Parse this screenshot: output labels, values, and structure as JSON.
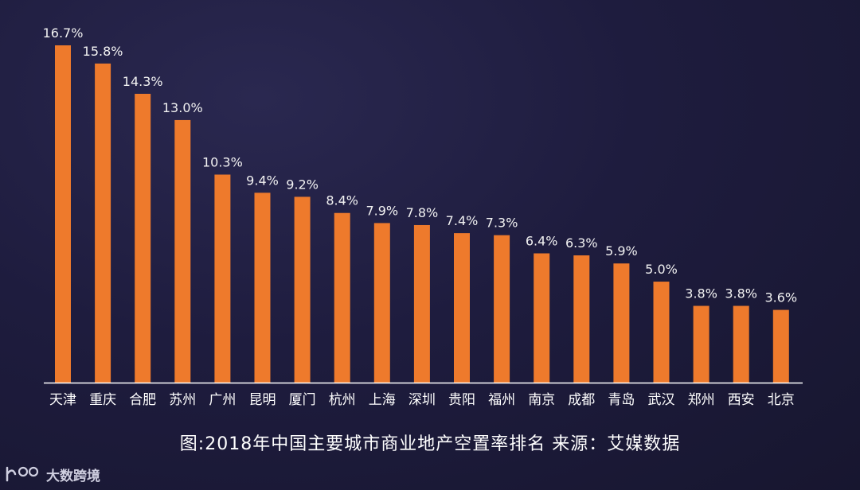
{
  "chart_data": {
    "type": "bar",
    "categories": [
      "天津",
      "重庆",
      "合肥",
      "苏州",
      "广州",
      "昆明",
      "厦门",
      "杭州",
      "上海",
      "深圳",
      "贵阳",
      "福州",
      "南京",
      "成都",
      "青岛",
      "武汉",
      "郑州",
      "西安",
      "北京"
    ],
    "values": [
      16.7,
      15.8,
      14.3,
      13.0,
      10.3,
      9.4,
      9.2,
      8.4,
      7.9,
      7.8,
      7.4,
      7.3,
      6.4,
      6.3,
      5.9,
      5.0,
      3.8,
      3.8,
      3.6
    ],
    "value_labels": [
      "16.7%",
      "15.8%",
      "14.3%",
      "13.0%",
      "10.3%",
      "9.4%",
      "9.2%",
      "8.4%",
      "7.9%",
      "7.8%",
      "7.4%",
      "7.3%",
      "6.4%",
      "6.3%",
      "5.9%",
      "5.0%",
      "3.8%",
      "3.8%",
      "3.6%"
    ],
    "title": "",
    "xlabel": "",
    "ylabel": "",
    "ylim": [
      0,
      16.7
    ],
    "grid": false,
    "bar_color": "#ee7a2c",
    "axis_color": "#ffffff"
  },
  "caption": "图:2018年中国主要城市商业地产空置率排名   来源：艾媒数据",
  "logo": {
    "icon": "logo-mark-icon",
    "text": "大数跨境"
  }
}
